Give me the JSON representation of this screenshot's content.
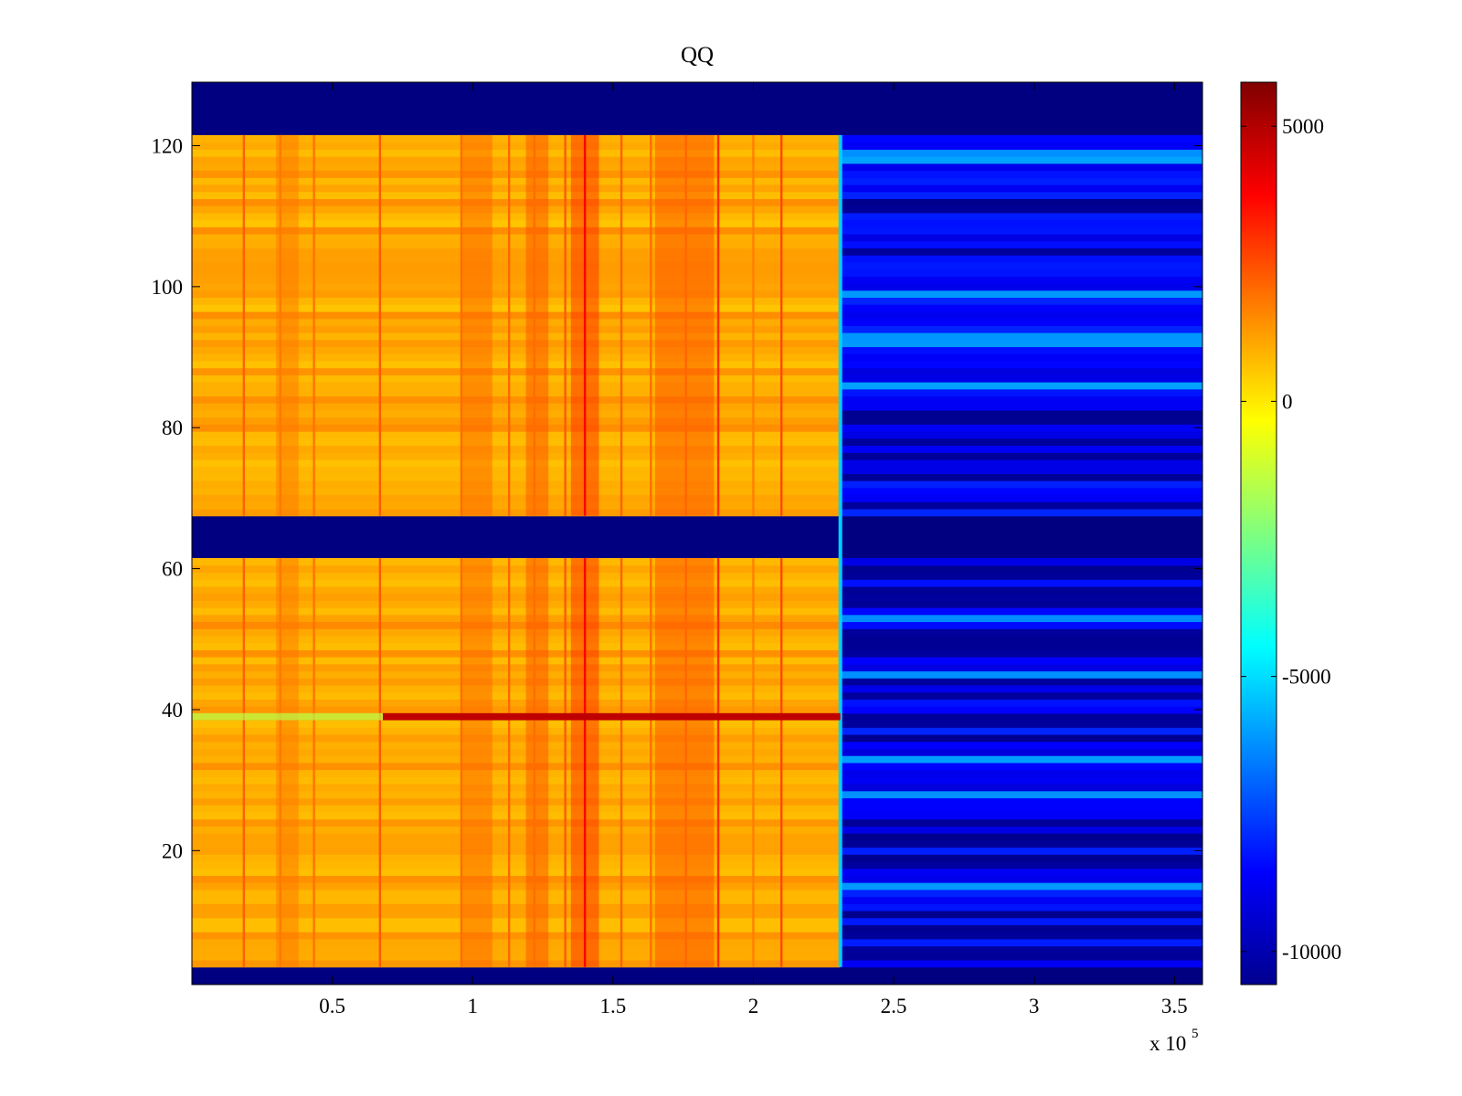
{
  "chart_data": {
    "type": "heatmap",
    "title": "QQ",
    "xlabel": "",
    "ylabel": "",
    "x_multiplier_label": "x 10",
    "x_multiplier_exponent": "5",
    "xlim": [
      0,
      360000
    ],
    "ylim": [
      1,
      129
    ],
    "xticks": [
      {
        "value": 50000,
        "label": "0.5"
      },
      {
        "value": 100000,
        "label": "1"
      },
      {
        "value": 150000,
        "label": "1.5"
      },
      {
        "value": 200000,
        "label": "2"
      },
      {
        "value": 250000,
        "label": "2.5"
      },
      {
        "value": 300000,
        "label": "3"
      },
      {
        "value": 350000,
        "label": "3.5"
      }
    ],
    "yticks": [
      {
        "value": 20,
        "label": "20"
      },
      {
        "value": 40,
        "label": "40"
      },
      {
        "value": 60,
        "label": "60"
      },
      {
        "value": 80,
        "label": "80"
      },
      {
        "value": 100,
        "label": "100"
      },
      {
        "value": 120,
        "label": "120"
      }
    ],
    "colormap": "jet",
    "clim": [
      -10600,
      5800
    ],
    "colorbar_ticks": [
      {
        "value": 5000,
        "label": "5000"
      },
      {
        "value": 0,
        "label": "0"
      },
      {
        "value": -5000,
        "label": "-5000"
      },
      {
        "value": -10000,
        "label": "-10000"
      }
    ],
    "background_value": -10600,
    "blank_row_ranges": [
      [
        1,
        3.5
      ],
      [
        61.5,
        67.5
      ],
      [
        121.5,
        129
      ]
    ],
    "transition_x": 231000,
    "left_region_base_value": 900,
    "right_region_base_value": -8500,
    "vertical_lines": [
      {
        "x": 18500,
        "value": 2200
      },
      {
        "x": 31500,
        "value": 1800
      },
      {
        "x": 43500,
        "value": 1900
      },
      {
        "x": 67000,
        "value": 2300
      },
      {
        "x": 96000,
        "value": 2000
      },
      {
        "x": 113000,
        "value": 2100
      },
      {
        "x": 122000,
        "value": 2000
      },
      {
        "x": 133000,
        "value": 2300
      },
      {
        "x": 140000,
        "value": 3800
      },
      {
        "x": 153000,
        "value": 2200
      },
      {
        "x": 163500,
        "value": 2000
      },
      {
        "x": 176000,
        "value": 2100
      },
      {
        "x": 187500,
        "value": 3000
      },
      {
        "x": 200000,
        "value": 1700
      },
      {
        "x": 210000,
        "value": 2600
      }
    ],
    "column_bands": [
      {
        "x_start": 30000,
        "x_end": 38000,
        "value": 1900
      },
      {
        "x_start": 96000,
        "x_end": 107000,
        "value": 2200
      },
      {
        "x_start": 119000,
        "x_end": 127000,
        "value": 2600
      },
      {
        "x_start": 135000,
        "x_end": 145000,
        "value": 3200
      },
      {
        "x_start": 165000,
        "x_end": 186000,
        "value": 2600
      }
    ],
    "highlight_row": {
      "y": 39,
      "x_start": 68000,
      "x_end": 231000,
      "value": 4800
    },
    "low_rows_right": [
      5,
      6,
      8,
      9,
      11,
      18,
      19,
      21,
      22,
      24,
      36,
      38,
      39,
      42,
      44,
      48,
      49,
      50,
      51,
      55,
      56,
      57,
      59,
      60,
      69,
      73,
      76,
      78,
      81,
      82,
      105,
      111,
      112
    ],
    "high_rows_right": [
      15,
      28,
      33,
      45,
      53,
      86,
      92,
      93,
      99,
      118,
      119
    ]
  }
}
